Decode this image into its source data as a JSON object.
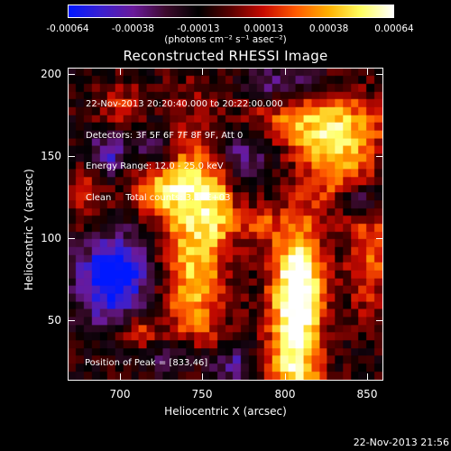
{
  "colorbar": {
    "ticks": [
      "-0.00064",
      "-0.00038",
      "-0.00013",
      "0.00013",
      "0.00038",
      "0.00064"
    ],
    "units": "(photons cm⁻² s⁻¹ asec⁻²)",
    "gradient": [
      "#0018ff",
      "#3a20d0",
      "#6a1a9a",
      "#3c0a2c",
      "#000000",
      "#5a0000",
      "#c80a00",
      "#ff5a00",
      "#ffb000",
      "#ffff60",
      "#ffffff"
    ]
  },
  "title": "Reconstructed RHESSI Image",
  "annotation": {
    "time": "22-Nov-2013 20:20:40.000 to 20:22:00.000",
    "detectors": "Detectors: 3F 5F 6F 7F 8F 9F, Att 0",
    "energy": "Energy Range: 12.0 - 25.0 keV",
    "clean": "Clean     Total counts: 3.16E+03"
  },
  "peak_label": "Position of Peak = [833,46]",
  "axes": {
    "xlabel": "Heliocentric X (arcsec)",
    "ylabel": "Heliocentric Y (arcsec)",
    "xticks": [
      "700",
      "750",
      "800",
      "850"
    ],
    "yticks": [
      "50",
      "100",
      "150",
      "200"
    ]
  },
  "timestamp": "22-Nov-2013 21:56"
}
